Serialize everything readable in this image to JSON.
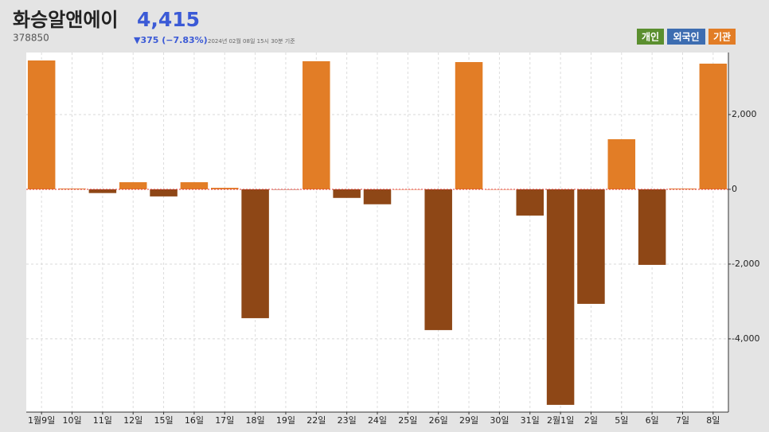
{
  "chart_data": {
    "type": "bar",
    "title": "화승알앤에이",
    "price": "4,415",
    "code": "378850",
    "change": "▼375 (−7.83%)",
    "timestamp": "2024년 02월 08일 15시 30분 기준",
    "legend_buttons": [
      {
        "label": "개인",
        "color": "#5b8f2f"
      },
      {
        "label": "외국인",
        "color": "#3d6db1"
      },
      {
        "label": "기관",
        "color": "#e27d26"
      }
    ],
    "categories": [
      "1월9일",
      "10일",
      "11일",
      "12일",
      "15일",
      "16일",
      "17일",
      "18일",
      "19일",
      "22일",
      "23일",
      "24일",
      "25일",
      "26일",
      "29일",
      "30일",
      "31일",
      "2월1일",
      "2일",
      "5일",
      "6일",
      "7일",
      "8일"
    ],
    "values": [
      3447,
      20,
      -100,
      190,
      -190,
      190,
      40,
      -3447,
      -10,
      3426,
      -230,
      -400,
      0,
      -3766,
      3404,
      0,
      -702,
      -5766,
      -3064,
      1340,
      -2021,
      20,
      3362
    ],
    "positive_color": "#e27d26",
    "negative_color": "#8e4716",
    "ylim": [
      -5960,
      3660
    ],
    "yticks": [
      {
        "value": -4000,
        "label": "-4,000"
      },
      {
        "value": -2000,
        "label": "-2,000"
      },
      0,
      {
        "value": 2000,
        "label": "2,000"
      }
    ],
    "grid": true
  }
}
